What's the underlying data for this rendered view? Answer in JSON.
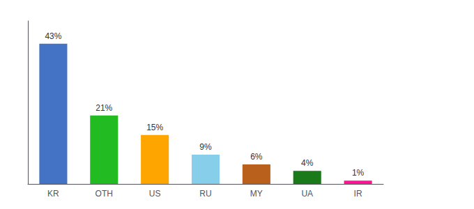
{
  "chart_data": {
    "type": "bar",
    "categories": [
      "KR",
      "OTH",
      "US",
      "RU",
      "MY",
      "UA",
      "IR"
    ],
    "values": [
      43,
      21,
      15,
      9,
      6,
      4,
      1
    ],
    "value_labels": [
      "43%",
      "21%",
      "15%",
      "9%",
      "6%",
      "4%",
      "1%"
    ],
    "colors": [
      "#4472C4",
      "#22BB22",
      "#FFA500",
      "#87CEEB",
      "#B8601C",
      "#1A7A1A",
      "#FF1493"
    ],
    "ylim": [
      0,
      50
    ],
    "grid": false,
    "data_labels": true,
    "tick_labels": "x"
  }
}
